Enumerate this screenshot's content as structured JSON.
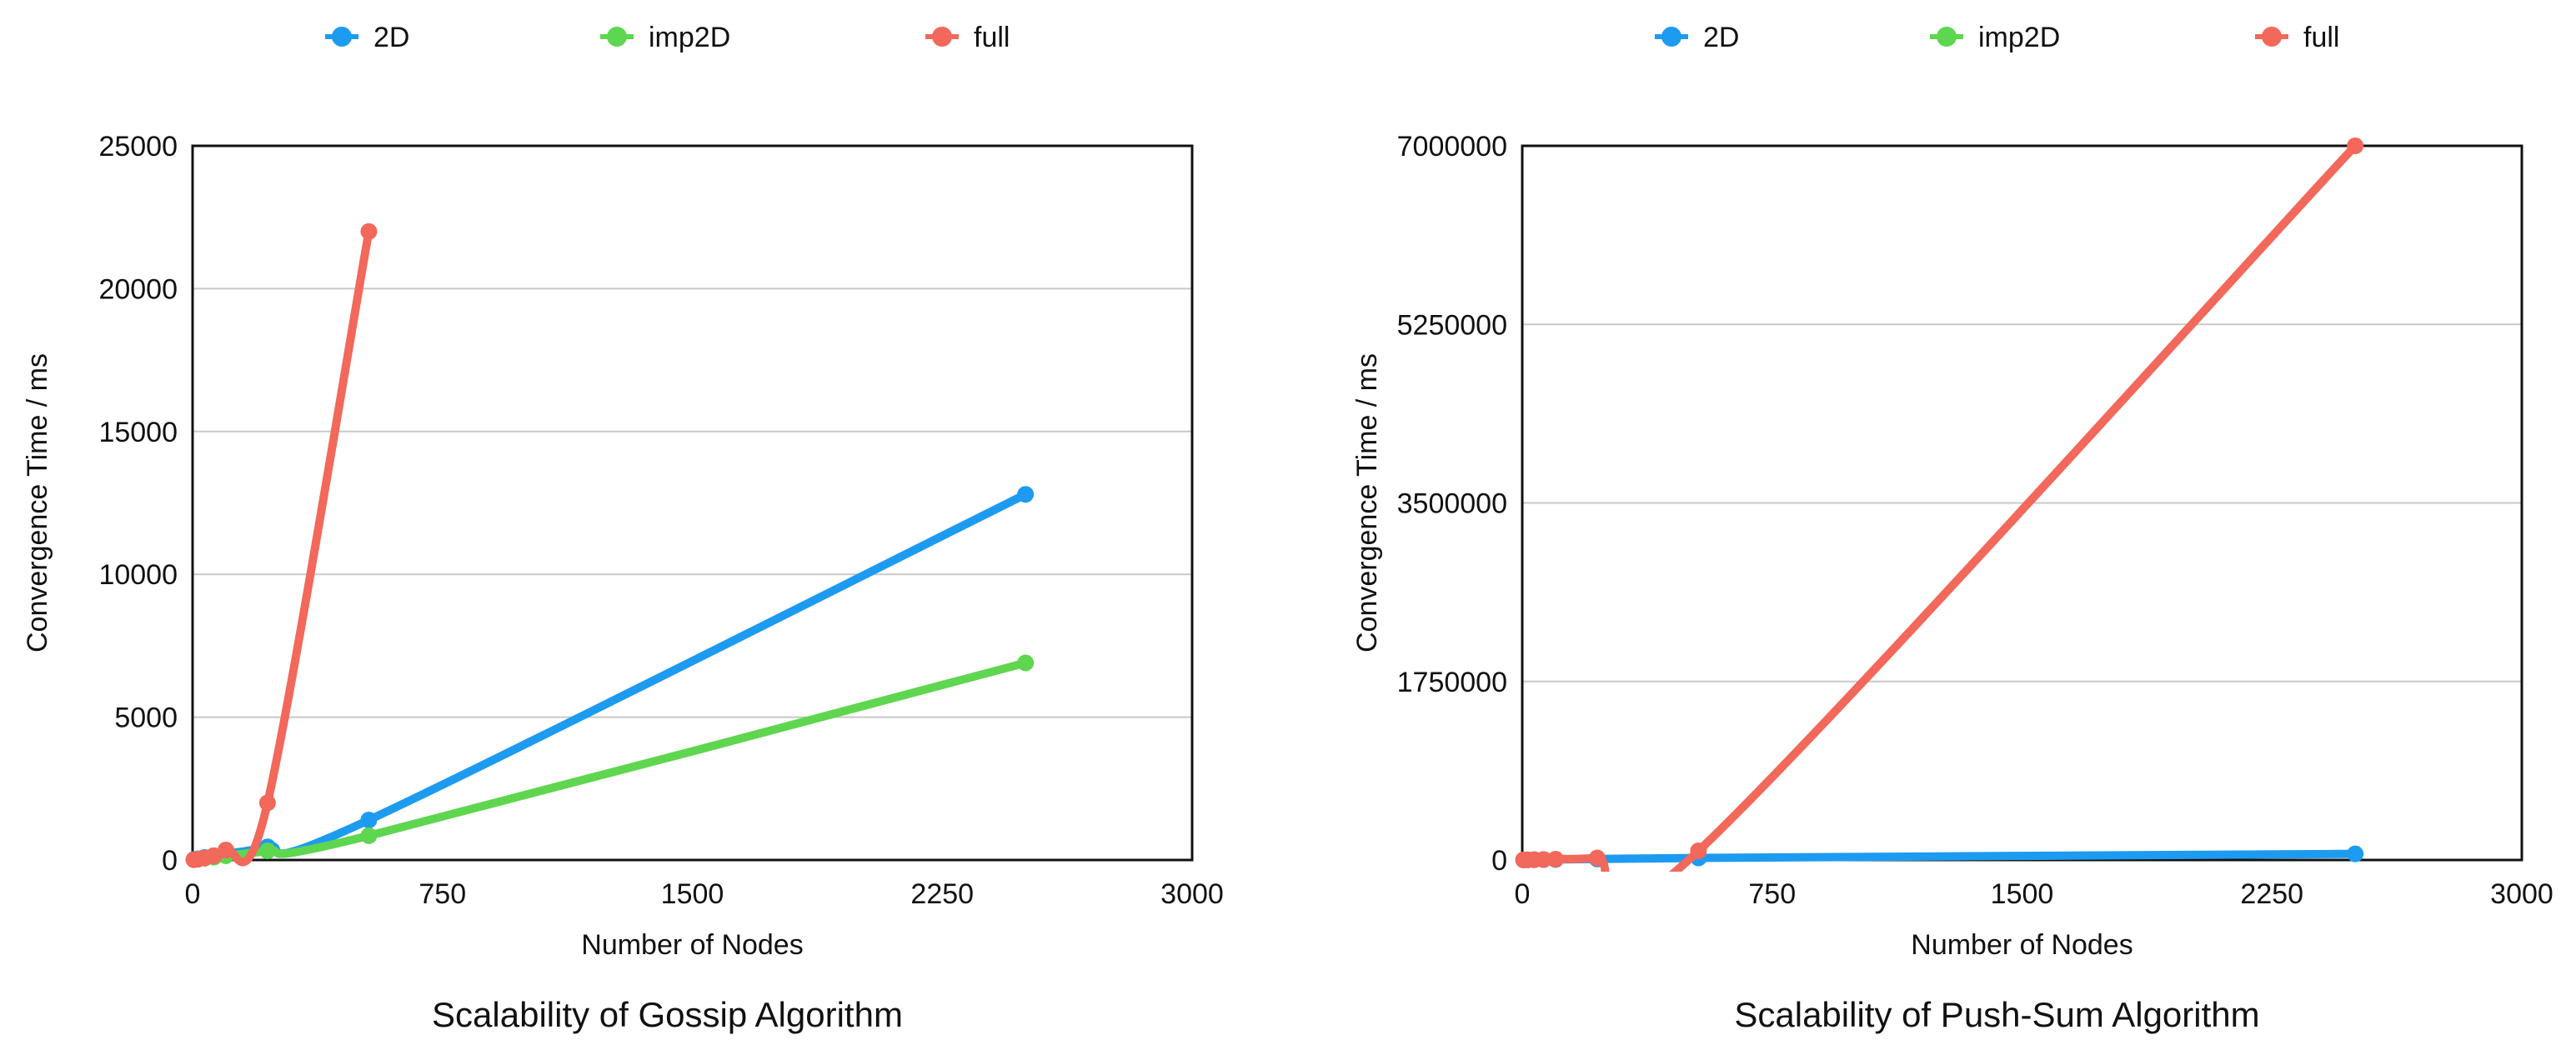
{
  "chart_data": [
    {
      "type": "line",
      "title": "Scalability of Gossip Algorithm",
      "xlabel": "Number of Nodes",
      "ylabel": "Convergence Time / ms",
      "xlim": [
        0,
        3000
      ],
      "ylim": [
        0,
        25000
      ],
      "x_ticks": [
        "0",
        "750",
        "1500",
        "2250",
        "3000"
      ],
      "y_ticks": [
        "0",
        "5000",
        "10000",
        "15000",
        "20000",
        "25000"
      ],
      "grid": "horizontal",
      "legend_position": "top",
      "series": [
        {
          "name": "2D",
          "color": "#1d9bf0",
          "x": [
            4,
            16,
            36,
            64,
            100,
            225,
            529,
            2500
          ],
          "y": [
            20,
            45,
            90,
            150,
            220,
            460,
            1400,
            12800
          ]
        },
        {
          "name": "imp2D",
          "color": "#5fd64f",
          "x": [
            4,
            16,
            36,
            64,
            100,
            225,
            529,
            2500
          ],
          "y": [
            10,
            30,
            60,
            100,
            150,
            320,
            850,
            6900
          ]
        },
        {
          "name": "full",
          "color": "#f2685a",
          "x": [
            4,
            16,
            36,
            64,
            100,
            225,
            529
          ],
          "y": [
            10,
            30,
            70,
            150,
            350,
            2000,
            22000
          ]
        }
      ]
    },
    {
      "type": "line",
      "title": "Scalability of Push-Sum Algorithm",
      "xlabel": "Number of Nodes",
      "ylabel": "Convergence Time / ms",
      "xlim": [
        0,
        3000
      ],
      "ylim": [
        0,
        7000000
      ],
      "x_ticks": [
        "0",
        "750",
        "1500",
        "2250",
        "3000"
      ],
      "y_ticks": [
        "0",
        "1750000",
        "3500000",
        "5250000",
        "7000000"
      ],
      "grid": "horizontal",
      "legend_position": "top",
      "series": [
        {
          "name": "2D",
          "color": "#1d9bf0",
          "x": [
            4,
            16,
            36,
            64,
            100,
            225,
            529,
            2500
          ],
          "y": [
            1000,
            2000,
            3000,
            4000,
            5000,
            10000,
            20000,
            60000
          ]
        },
        {
          "name": "imp2D",
          "color": "#5fd64f",
          "x": [],
          "y": []
        },
        {
          "name": "full",
          "color": "#f2685a",
          "x": [
            4,
            16,
            36,
            64,
            100,
            225,
            529,
            2500
          ],
          "y": [
            1000,
            2000,
            3000,
            5000,
            8000,
            20000,
            90000,
            7000000
          ]
        }
      ]
    }
  ]
}
